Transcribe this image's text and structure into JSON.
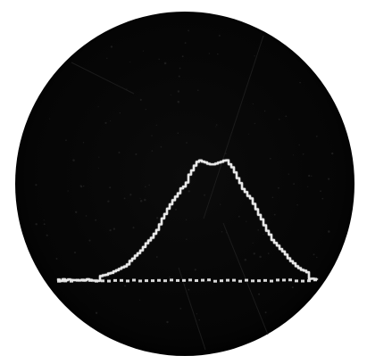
{
  "scope": {
    "background_color": "#ffffff",
    "screen_color": "#050505",
    "trace_color": "#e8e8e8",
    "baseline_color": "#d9d9d9",
    "noise_color": "#1c1c1c"
  },
  "trace": {
    "shape": "stepped bell curve",
    "baseline_style": "dotted"
  }
}
